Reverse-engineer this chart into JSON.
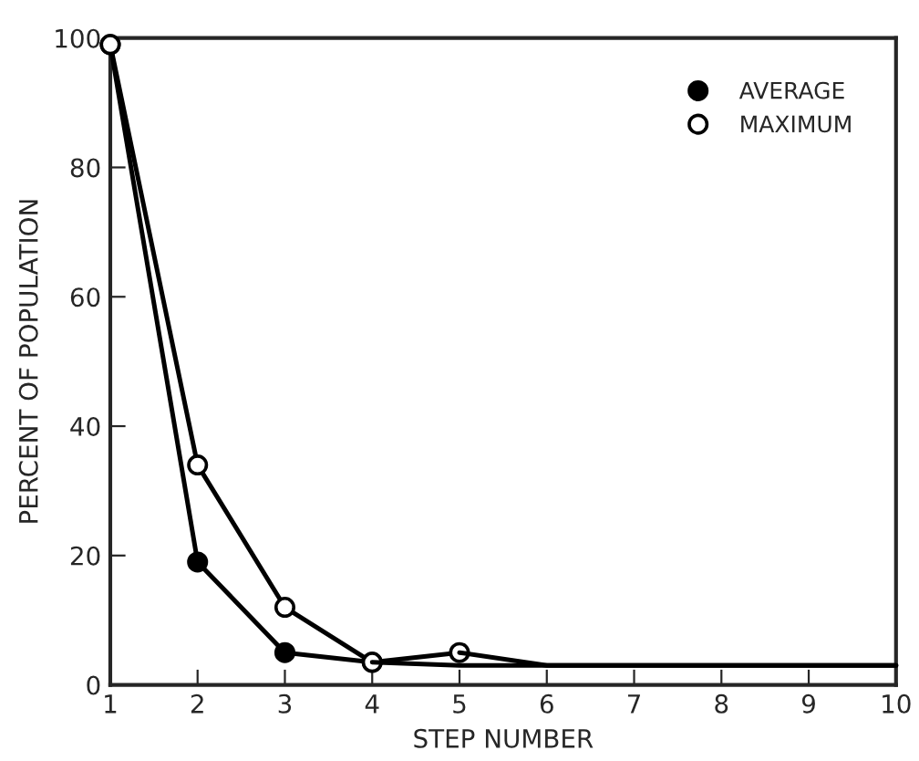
{
  "chart_data": {
    "type": "line",
    "xlabel": "STEP NUMBER",
    "ylabel": "PERCENT OF POPULATION",
    "series": [
      {
        "name": "AVERAGE",
        "color": "#000000",
        "marker": "circle",
        "x": [
          1,
          2,
          3,
          4
        ],
        "values": [
          99,
          19,
          5,
          3.5
        ]
      },
      {
        "name": "MAXIMUM",
        "color": "#000000",
        "marker": "circle",
        "x": [
          1,
          2,
          3,
          4,
          5
        ],
        "values": [
          99,
          34,
          12,
          3.5,
          5
        ]
      },
      {
        "color": "#000000",
        "marker": "none",
        "x": [
          4,
          5,
          6,
          7,
          8,
          9,
          10
        ],
        "values": [
          3.5,
          3,
          3,
          3,
          3,
          3,
          3
        ]
      },
      {
        "color": "#000000",
        "marker": "none",
        "x": [
          5,
          6,
          7,
          8,
          9,
          10
        ],
        "values": [
          5,
          3,
          3,
          3,
          3,
          3
        ]
      }
    ],
    "xlim": [
      1,
      10
    ],
    "ylim": [
      0,
      100
    ],
    "xticks": [
      1,
      2,
      3,
      4,
      5,
      6,
      7,
      8,
      9,
      10
    ],
    "yticks": [
      0,
      20,
      40,
      60,
      80,
      100
    ],
    "grid": false,
    "legend": "top right",
    "line_style": "solid"
  }
}
